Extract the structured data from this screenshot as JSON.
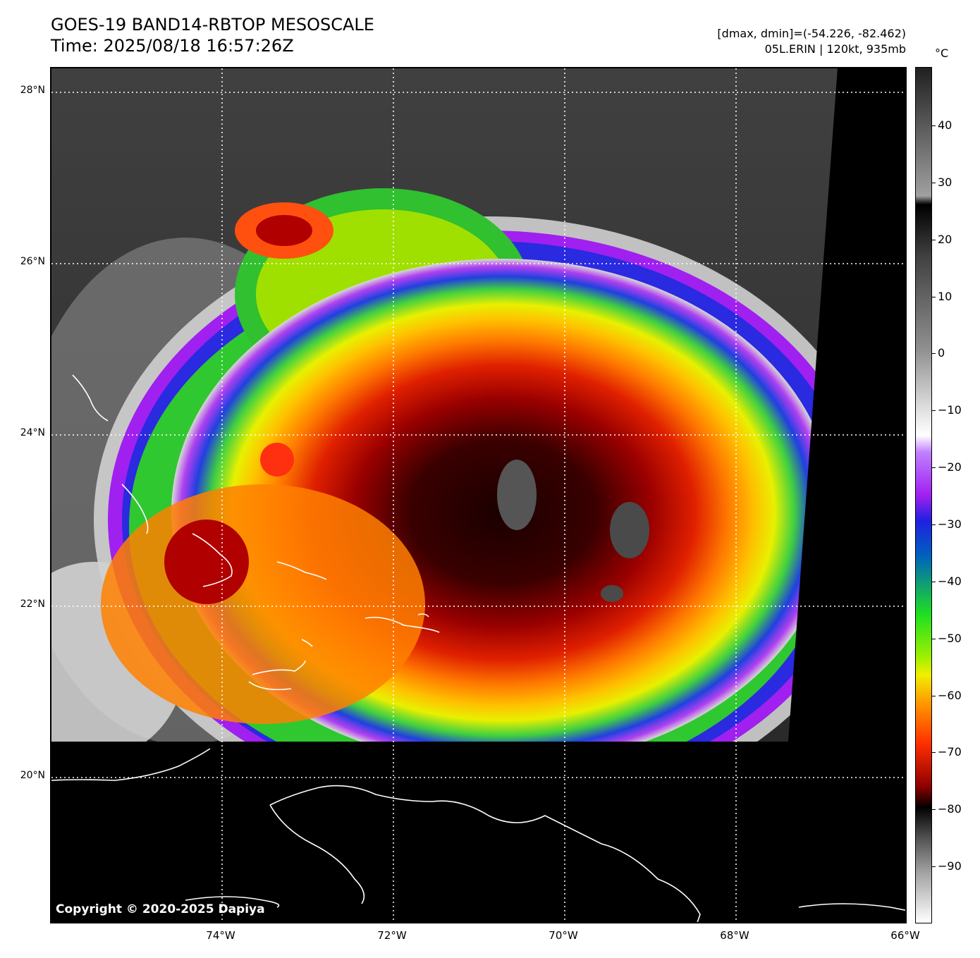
{
  "header": {
    "title_line1": "GOES-19 BAND14-RBTOP MESOSCALE",
    "title_line2": "Time: 2025/08/18 16:57:26Z",
    "range_text": "[dmax, dmin]=(-54.226, -82.462)",
    "storm_text": "05L.ERIN | 120kt, 935mb"
  },
  "colorbar": {
    "unit": "°C",
    "ticks": [
      "40",
      "30",
      "20",
      "10",
      "0",
      "−10",
      "−20",
      "−30",
      "−40",
      "−50",
      "−60",
      "−70",
      "−80",
      "−90"
    ]
  },
  "axes": {
    "lat_labels": [
      "28°N",
      "26°N",
      "24°N",
      "22°N",
      "20°N"
    ],
    "lon_labels": [
      "74°W",
      "72°W",
      "70°W",
      "68°W",
      "66°W"
    ]
  },
  "copyright": "Copyright © 2020-2025 Dapiya",
  "colors": {
    "cold_core": "#2a0000",
    "red": "#c80000",
    "orange": "#ff8000",
    "yellow": "#f0f000",
    "green": "#30d030",
    "blue": "#2020e0",
    "purple": "#a020f0",
    "white_cloud": "#e8e8e8",
    "background_gray": "#3c3c3c"
  }
}
